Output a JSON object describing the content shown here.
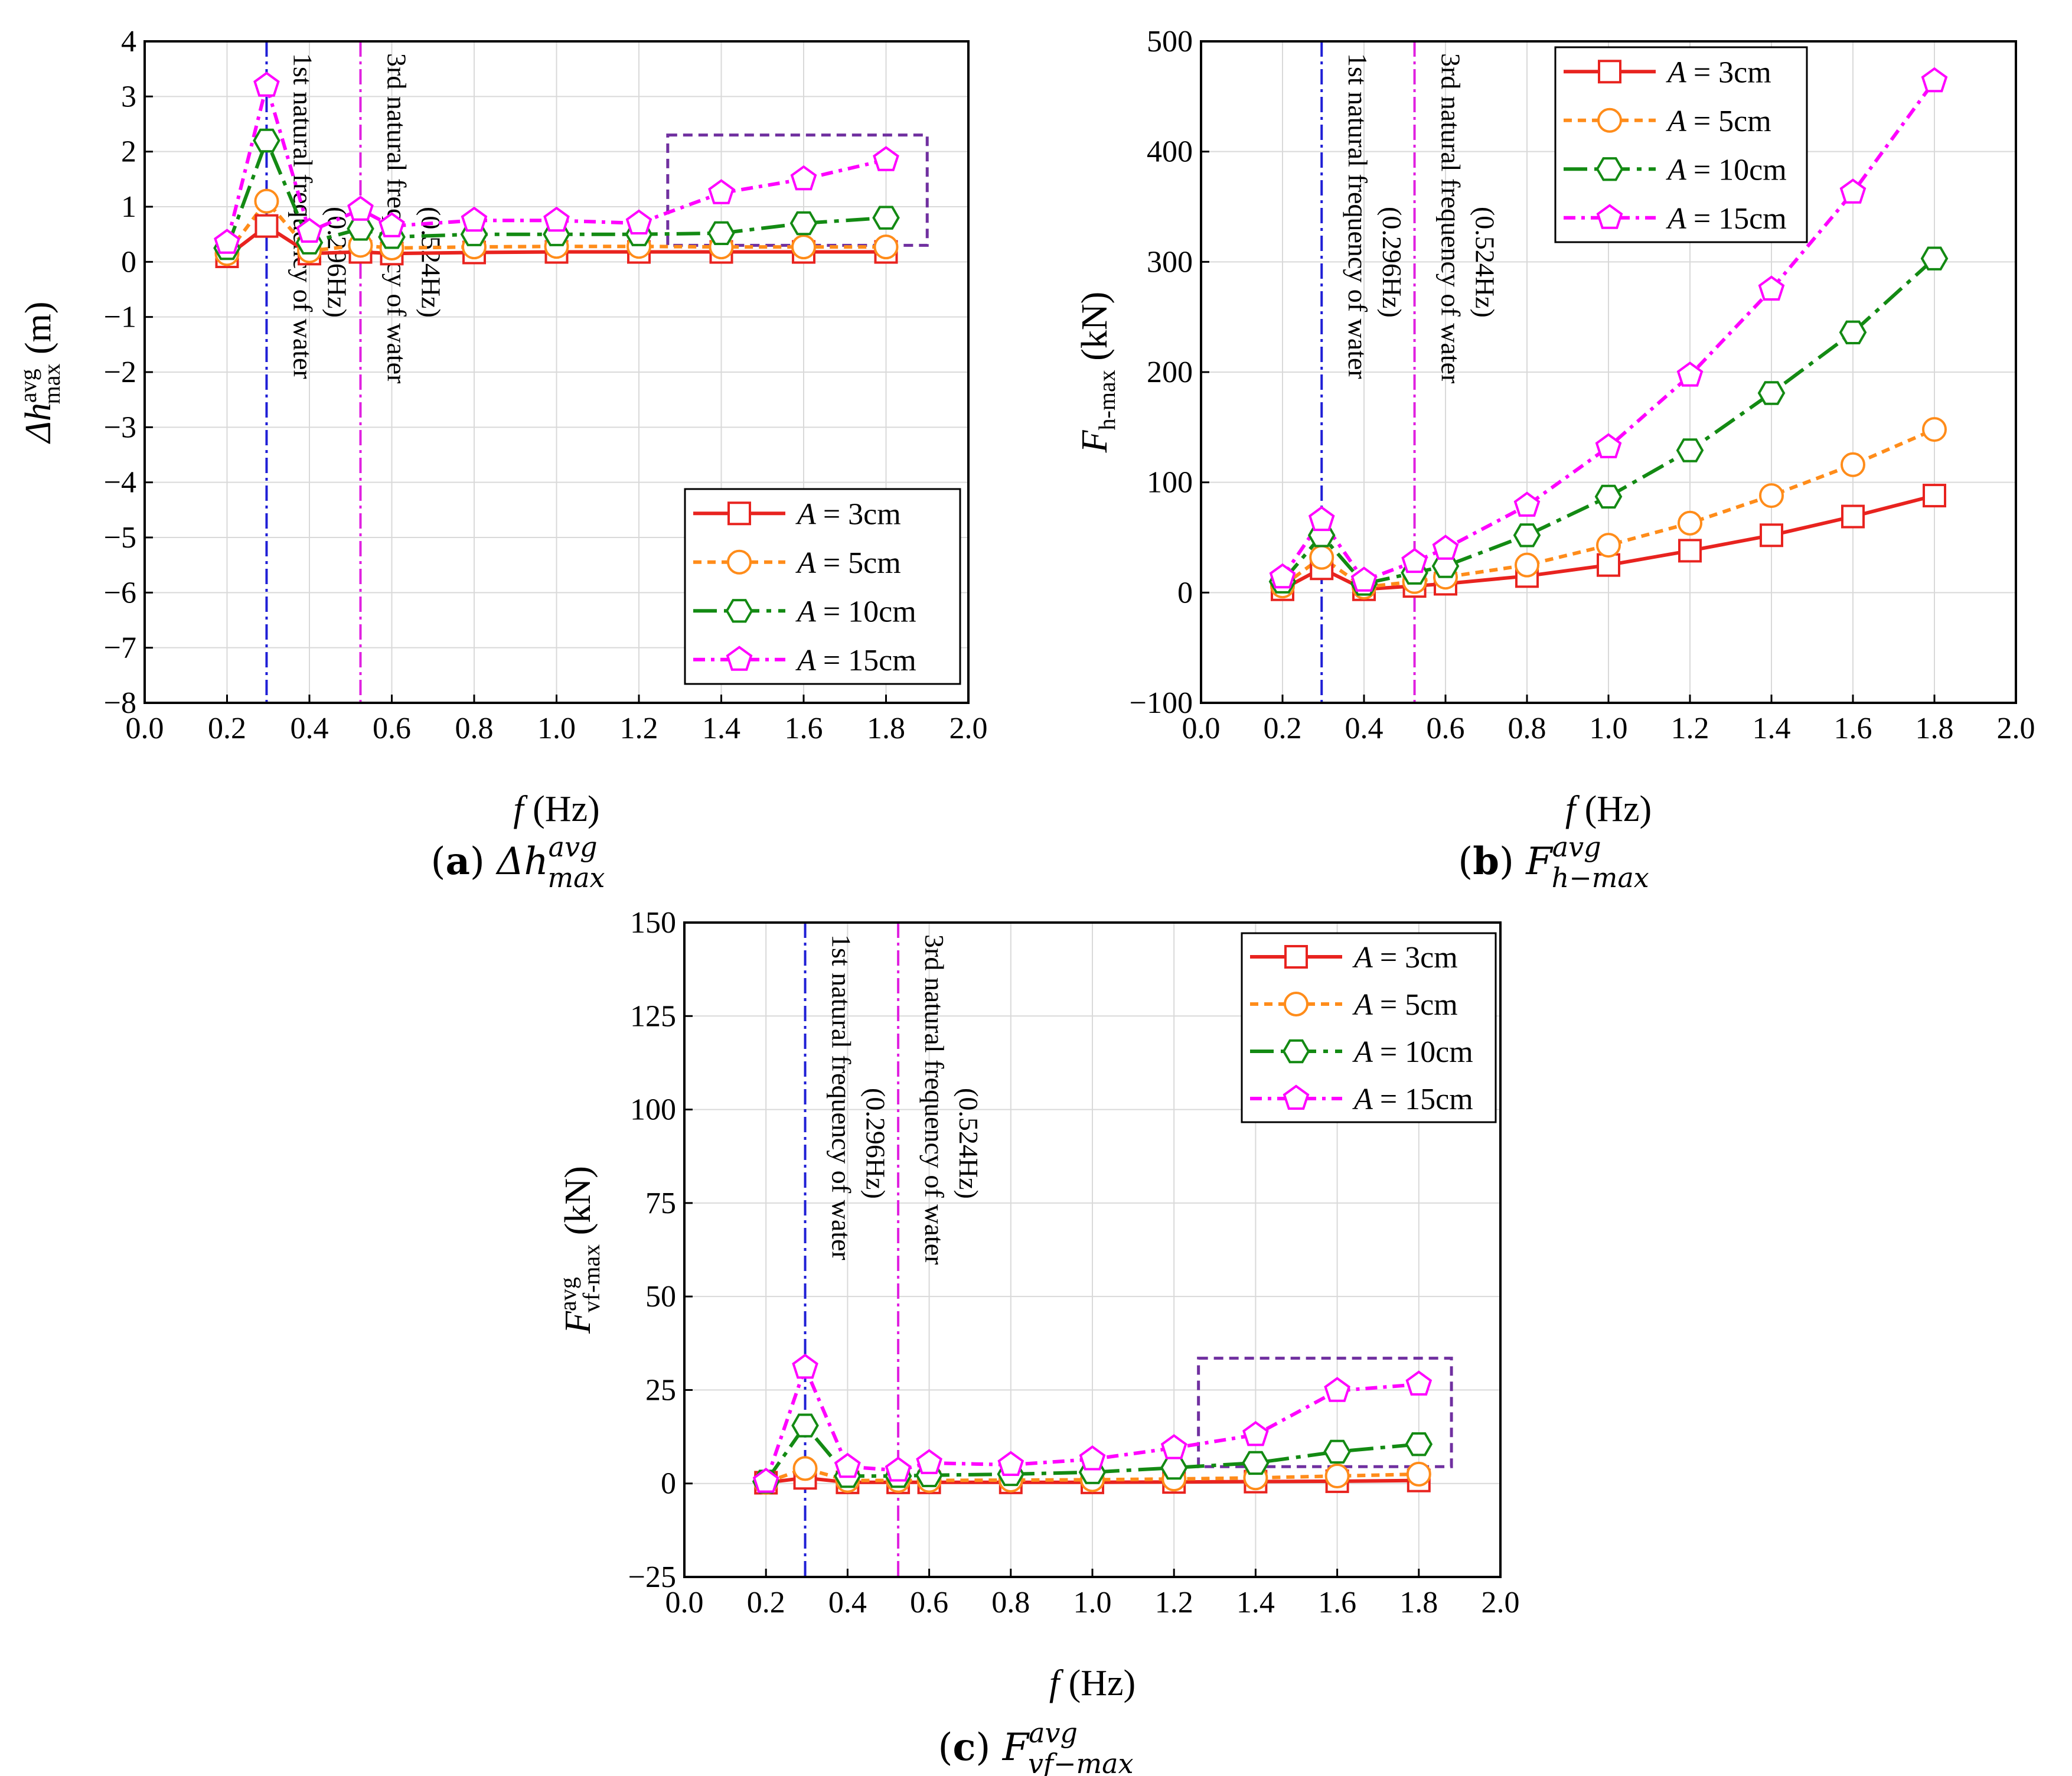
{
  "chart_data": [
    {
      "id": "a",
      "type": "line",
      "caption": "(a) Δh avg max",
      "caption_letter": "a",
      "caption_symbol": "Δh",
      "caption_sup": "avg",
      "caption_sub": "max",
      "ylabel_symbol": "Δh",
      "ylabel_sup": "avg",
      "ylabel_sub": "max",
      "ylabel_unit": "(m)",
      "xlabel_symbol": "f",
      "xlabel_unit": "(Hz)",
      "xlim": [
        0.0,
        2.0
      ],
      "ylim": [
        -8,
        4
      ],
      "xticks": [
        0.0,
        0.2,
        0.4,
        0.6,
        0.8,
        1.0,
        1.2,
        1.4,
        1.6,
        1.8,
        2.0
      ],
      "yticks": [
        -8,
        -7,
        -6,
        -5,
        -4,
        -3,
        -2,
        -1,
        0,
        1,
        2,
        3,
        4
      ],
      "grid": true,
      "legend_position": "lower-right",
      "vlines": [
        {
          "x": 0.296,
          "color": "#1f1fd6",
          "text1": "1st natural frequency of water",
          "text2": "(0.296Hz)"
        },
        {
          "x": 0.524,
          "color": "#e020e0",
          "text1": "3rd natural frequency of water",
          "text2": "(0.524Hz)"
        }
      ],
      "highlight_box": {
        "x0": 1.27,
        "x1": 1.9,
        "y0": 0.3,
        "y1": 2.3,
        "color": "#7030a0"
      },
      "x": [
        0.2,
        0.296,
        0.4,
        0.524,
        0.6,
        0.8,
        1.0,
        1.2,
        1.4,
        1.6,
        1.8
      ],
      "series": [
        {
          "name": "A = 3cm",
          "legend_var": "A",
          "legend_val": "= 3cm",
          "color": "#e8231f",
          "dash": "",
          "marker": "square",
          "values": [
            0.1,
            0.65,
            0.15,
            0.18,
            0.15,
            0.17,
            0.18,
            0.18,
            0.18,
            0.18,
            0.18
          ]
        },
        {
          "name": "A = 5cm",
          "legend_var": "A",
          "legend_val": "= 5cm",
          "color": "#ff8c1a",
          "dash": "14,10",
          "marker": "circle",
          "values": [
            0.15,
            1.1,
            0.2,
            0.3,
            0.25,
            0.27,
            0.28,
            0.28,
            0.27,
            0.27,
            0.27
          ]
        },
        {
          "name": "A = 10cm",
          "legend_var": "A",
          "legend_val": "= 10cm",
          "color": "#138a13",
          "dash": "40,12,8,12",
          "marker": "hexagon",
          "values": [
            0.25,
            2.2,
            0.35,
            0.6,
            0.45,
            0.5,
            0.5,
            0.5,
            0.52,
            0.7,
            0.8
          ]
        },
        {
          "name": "A = 15cm",
          "legend_var": "A",
          "legend_val": "= 15cm",
          "color": "#ff00ff",
          "dash": "20,10,6,10",
          "marker": "pentagon",
          "values": [
            0.35,
            3.2,
            0.55,
            0.95,
            0.65,
            0.75,
            0.75,
            0.7,
            1.25,
            1.5,
            1.85
          ]
        }
      ]
    },
    {
      "id": "b",
      "type": "line",
      "caption": "(b) F avg h-max",
      "caption_letter": "b",
      "caption_symbol": "F",
      "caption_sup": "avg",
      "caption_sub": "h−max",
      "ylabel_symbol": "F",
      "ylabel_sup": "",
      "ylabel_sub": "h-max",
      "ylabel_unit": "(kN)",
      "xlabel_symbol": "f",
      "xlabel_unit": "(Hz)",
      "xlim": [
        0.0,
        2.0
      ],
      "ylim": [
        -100,
        500
      ],
      "xticks": [
        0.0,
        0.2,
        0.4,
        0.6,
        0.8,
        1.0,
        1.2,
        1.4,
        1.6,
        1.8,
        2.0
      ],
      "yticks": [
        -100,
        0,
        100,
        200,
        300,
        400,
        500
      ],
      "grid": true,
      "legend_position": "upper-left",
      "vlines": [
        {
          "x": 0.296,
          "color": "#1f1fd6",
          "text1": "1st natural frequency of water",
          "text2": "(0.296Hz)"
        },
        {
          "x": 0.524,
          "color": "#e020e0",
          "text1": "3rd natural frequency of water",
          "text2": "(0.524Hz)"
        }
      ],
      "highlight_box": null,
      "x": [
        0.2,
        0.296,
        0.4,
        0.524,
        0.6,
        0.8,
        1.0,
        1.2,
        1.4,
        1.6,
        1.8
      ],
      "series": [
        {
          "name": "A = 3cm",
          "legend_var": "A",
          "legend_val": "= 3cm",
          "color": "#e8231f",
          "dash": "",
          "marker": "square",
          "values": [
            3,
            22,
            3,
            6,
            8,
            15,
            25,
            38,
            52,
            69,
            88
          ]
        },
        {
          "name": "A = 5cm",
          "legend_var": "A",
          "legend_val": "= 5cm",
          "color": "#ff8c1a",
          "dash": "14,10",
          "marker": "circle",
          "values": [
            6,
            32,
            5,
            10,
            14,
            25,
            43,
            63,
            88,
            116,
            148
          ]
        },
        {
          "name": "A = 10cm",
          "legend_var": "A",
          "legend_val": "= 10cm",
          "color": "#138a13",
          "dash": "40,12,8,12",
          "marker": "hexagon",
          "values": [
            10,
            52,
            8,
            18,
            24,
            52,
            87,
            129,
            181,
            236,
            303
          ]
        },
        {
          "name": "A = 15cm",
          "legend_var": "A",
          "legend_val": "= 15cm",
          "color": "#ff00ff",
          "dash": "20,10,6,10",
          "marker": "pentagon",
          "values": [
            14,
            66,
            11,
            28,
            40,
            79,
            132,
            197,
            275,
            363,
            464
          ]
        }
      ]
    },
    {
      "id": "c",
      "type": "line",
      "caption": "(c) F avg vf-max",
      "caption_letter": "c",
      "caption_symbol": "F",
      "caption_sup": "avg",
      "caption_sub": "vf−max",
      "ylabel_symbol": "F",
      "ylabel_sup": "avg",
      "ylabel_sub": "vf-max",
      "ylabel_unit": "(kN)",
      "xlabel_symbol": "f",
      "xlabel_unit": "(Hz)",
      "xlim": [
        0.0,
        2.0
      ],
      "ylim": [
        -25,
        150
      ],
      "xticks": [
        0.0,
        0.2,
        0.4,
        0.6,
        0.8,
        1.0,
        1.2,
        1.4,
        1.6,
        1.8,
        2.0
      ],
      "yticks": [
        -25,
        0,
        25,
        50,
        75,
        100,
        125,
        150
      ],
      "grid": true,
      "legend_position": "upper-right",
      "vlines": [
        {
          "x": 0.296,
          "color": "#1f1fd6",
          "text1": "1st natural frequency of water",
          "text2": "(0.296Hz)"
        },
        {
          "x": 0.524,
          "color": "#e020e0",
          "text1": "3rd natural frequency of water",
          "text2": "(0.524Hz)"
        }
      ],
      "highlight_box": {
        "x0": 1.26,
        "x1": 1.88,
        "y0": 4.5,
        "y1": 33.5,
        "color": "#7030a0"
      },
      "x": [
        0.2,
        0.296,
        0.4,
        0.524,
        0.6,
        0.8,
        1.0,
        1.2,
        1.4,
        1.6,
        1.8
      ],
      "series": [
        {
          "name": "A = 3cm",
          "legend_var": "A",
          "legend_val": "= 3cm",
          "color": "#e8231f",
          "dash": "",
          "marker": "square",
          "values": [
            0.2,
            1.5,
            0.3,
            0.3,
            0.3,
            0.3,
            0.3,
            0.4,
            0.5,
            0.6,
            0.8
          ]
        },
        {
          "name": "A = 5cm",
          "legend_var": "A",
          "legend_val": "= 5cm",
          "color": "#ff8c1a",
          "dash": "14,10",
          "marker": "circle",
          "values": [
            0.3,
            4.0,
            0.8,
            0.8,
            0.8,
            0.9,
            1.0,
            1.2,
            1.5,
            2.0,
            2.5
          ]
        },
        {
          "name": "A = 10cm",
          "legend_var": "A",
          "legend_val": "= 10cm",
          "color": "#138a13",
          "dash": "40,12,8,12",
          "marker": "hexagon",
          "values": [
            0.5,
            15.5,
            2.0,
            2.0,
            2.2,
            2.5,
            3.0,
            4.2,
            5.5,
            8.5,
            10.5
          ]
        },
        {
          "name": "A = 15cm",
          "legend_var": "A",
          "legend_val": "= 15cm",
          "color": "#ff00ff",
          "dash": "20,10,6,10",
          "marker": "pentagon",
          "values": [
            0.5,
            31.0,
            4.5,
            3.5,
            5.5,
            5.0,
            6.5,
            9.5,
            13.0,
            24.8,
            26.5
          ]
        }
      ]
    }
  ]
}
